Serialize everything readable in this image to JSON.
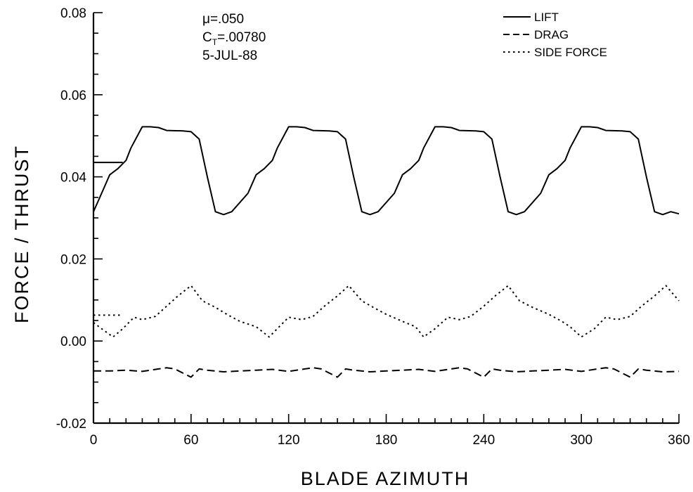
{
  "chart_data": {
    "type": "line",
    "title": "",
    "xlabel": "BLADE AZIMUTH",
    "ylabel": "FORCE / THRUST",
    "xlim": [
      0,
      360
    ],
    "ylim": [
      -0.02,
      0.08
    ],
    "x_ticks": [
      0,
      60,
      120,
      180,
      240,
      300,
      360
    ],
    "x_tick_labels": [
      "0",
      "60",
      "120",
      "180",
      "240",
      "300",
      "360"
    ],
    "y_ticks": [
      -0.02,
      0.0,
      0.02,
      0.04,
      0.06,
      0.08
    ],
    "y_tick_labels": [
      "-0.02",
      "0.00",
      "0.02",
      "0.04",
      "0.06",
      "0.08"
    ],
    "grid": false,
    "legend_position": "top-right",
    "annotations": {
      "mu": "μ=.050",
      "ct_prefix": "C",
      "ct_sub": "T",
      "ct_value": "=.00780",
      "date": "5-JUL-88"
    },
    "mean_markers": [
      {
        "series": "LIFT",
        "y": 0.0435,
        "x": [
          0,
          18
        ]
      },
      {
        "series": "SIDE FORCE",
        "y": 0.0063,
        "x": [
          0,
          18
        ]
      }
    ],
    "series": [
      {
        "name": "LIFT",
        "style": "solid",
        "x": [
          0,
          5,
          10,
          15,
          20,
          23,
          30,
          35,
          40,
          45,
          55,
          60,
          65,
          70,
          75,
          80,
          85,
          95,
          100,
          105,
          110,
          113,
          120,
          125,
          130,
          135,
          145,
          150,
          155,
          160,
          165,
          170,
          175,
          185,
          190,
          195,
          200,
          203,
          210,
          215,
          220,
          225,
          235,
          240,
          245,
          250,
          255,
          260,
          265,
          275,
          280,
          285,
          290,
          293,
          300,
          305,
          310,
          315,
          325,
          330,
          335,
          340,
          345,
          350,
          355,
          360
        ],
        "y": [
          0.0315,
          0.036,
          0.0405,
          0.042,
          0.044,
          0.047,
          0.0522,
          0.0522,
          0.052,
          0.0513,
          0.0512,
          0.051,
          0.0492,
          0.04,
          0.0315,
          0.0308,
          0.0315,
          0.036,
          0.0405,
          0.042,
          0.044,
          0.047,
          0.0522,
          0.0522,
          0.052,
          0.0513,
          0.0512,
          0.051,
          0.0492,
          0.04,
          0.0315,
          0.0308,
          0.0315,
          0.036,
          0.0405,
          0.042,
          0.044,
          0.047,
          0.0522,
          0.0522,
          0.052,
          0.0513,
          0.0512,
          0.051,
          0.0492,
          0.04,
          0.0315,
          0.0308,
          0.0315,
          0.036,
          0.0405,
          0.042,
          0.044,
          0.047,
          0.0522,
          0.0522,
          0.052,
          0.0513,
          0.0512,
          0.051,
          0.0492,
          0.04,
          0.0315,
          0.0308,
          0.0315,
          0.031
        ]
      },
      {
        "name": "DRAG",
        "style": "dashed",
        "x": [
          0,
          10,
          20,
          30,
          40,
          45,
          50,
          60,
          65,
          70,
          80,
          90,
          100,
          110,
          120,
          130,
          135,
          140,
          150,
          155,
          160,
          170,
          180,
          190,
          200,
          210,
          220,
          225,
          230,
          240,
          245,
          250,
          260,
          270,
          280,
          290,
          300,
          310,
          315,
          320,
          330,
          335,
          340,
          350,
          360
        ],
        "y": [
          -0.0073,
          -0.0073,
          -0.0071,
          -0.0074,
          -0.0068,
          -0.0065,
          -0.0068,
          -0.0088,
          -0.0068,
          -0.0071,
          -0.0075,
          -0.0073,
          -0.0071,
          -0.0069,
          -0.0074,
          -0.0068,
          -0.0065,
          -0.0068,
          -0.0088,
          -0.0068,
          -0.0071,
          -0.0075,
          -0.0073,
          -0.0071,
          -0.0069,
          -0.0074,
          -0.0068,
          -0.0065,
          -0.0068,
          -0.0088,
          -0.0068,
          -0.0071,
          -0.0075,
          -0.0073,
          -0.0071,
          -0.0069,
          -0.0074,
          -0.0068,
          -0.0065,
          -0.0068,
          -0.0088,
          -0.0068,
          -0.0071,
          -0.0075,
          -0.0074
        ]
      },
      {
        "name": "SIDE FORCE",
        "style": "dotted",
        "x": [
          0,
          5,
          12,
          18,
          25,
          30,
          38,
          45,
          52,
          60,
          67,
          75,
          82,
          90,
          100,
          108,
          113,
          120,
          128,
          135,
          142,
          150,
          157,
          165,
          172,
          180,
          190,
          198,
          203,
          210,
          218,
          225,
          232,
          240,
          247,
          255,
          262,
          270,
          280,
          288,
          293,
          300,
          308,
          315,
          322,
          330,
          337,
          345,
          352,
          360
        ],
        "y": [
          0.0045,
          0.003,
          0.001,
          0.003,
          0.0058,
          0.0052,
          0.006,
          0.0085,
          0.011,
          0.0135,
          0.0098,
          0.0082,
          0.0065,
          0.0048,
          0.0035,
          0.001,
          0.003,
          0.0058,
          0.0052,
          0.006,
          0.0085,
          0.011,
          0.0135,
          0.0098,
          0.0082,
          0.0065,
          0.0048,
          0.0035,
          0.001,
          0.003,
          0.0058,
          0.0052,
          0.006,
          0.0085,
          0.011,
          0.0135,
          0.0098,
          0.0082,
          0.0065,
          0.0048,
          0.0035,
          0.001,
          0.003,
          0.0058,
          0.0052,
          0.006,
          0.0085,
          0.011,
          0.0135,
          0.0098
        ]
      }
    ]
  }
}
